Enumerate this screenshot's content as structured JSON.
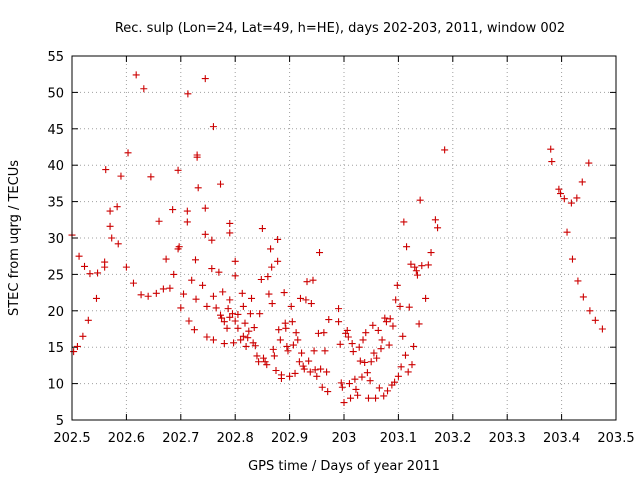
{
  "chart_data": {
    "type": "scatter",
    "title": "Rec. sulp (Lon=24, Lat=49, h=HE), days 202-203, 2011, window 002",
    "xlabel": "GPS time / Days of year 2011",
    "ylabel": "STEC from uqrg / TECUs",
    "xlim": [
      202.5,
      203.5
    ],
    "ylim": [
      5,
      55
    ],
    "x_ticks": [
      "202.5",
      "202.6",
      "202.7",
      "202.8",
      "202.9",
      "203",
      "203.1",
      "203.2",
      "203.3",
      "203.4",
      "203.5"
    ],
    "y_ticks": [
      "5",
      "10",
      "15",
      "20",
      "25",
      "30",
      "35",
      "40",
      "45",
      "50",
      "55"
    ],
    "grid": true,
    "legend": "none",
    "marker": "plus",
    "color": "#cc0000",
    "series": [
      {
        "name": "STEC",
        "points": [
          [
            202.5,
            30.4
          ],
          [
            202.503,
            14.4
          ],
          [
            202.51,
            15.1
          ],
          [
            202.513,
            27.5
          ],
          [
            202.52,
            16.5
          ],
          [
            202.523,
            26.1
          ],
          [
            202.53,
            18.7
          ],
          [
            202.533,
            25.1
          ],
          [
            202.545,
            21.7
          ],
          [
            202.547,
            25.2
          ],
          [
            202.56,
            26.0
          ],
          [
            202.56,
            26.7
          ],
          [
            202.562,
            39.4
          ],
          [
            202.57,
            33.7
          ],
          [
            202.57,
            31.6
          ],
          [
            202.573,
            30.0
          ],
          [
            202.583,
            34.3
          ],
          [
            202.585,
            29.2
          ],
          [
            202.59,
            38.5
          ],
          [
            202.6,
            26.0
          ],
          [
            202.603,
            41.7
          ],
          [
            202.613,
            23.8
          ],
          [
            202.618,
            52.4
          ],
          [
            202.627,
            22.2
          ],
          [
            202.632,
            50.5
          ],
          [
            202.64,
            22.0
          ],
          [
            202.645,
            38.4
          ],
          [
            202.655,
            22.4
          ],
          [
            202.66,
            32.3
          ],
          [
            202.668,
            23.0
          ],
          [
            202.673,
            27.1
          ],
          [
            202.68,
            23.1
          ],
          [
            202.685,
            33.9
          ],
          [
            202.687,
            25.0
          ],
          [
            202.695,
            28.5
          ],
          [
            202.695,
            39.3
          ],
          [
            202.697,
            28.8
          ],
          [
            202.7,
            20.4
          ],
          [
            202.705,
            22.3
          ],
          [
            202.712,
            33.7
          ],
          [
            202.712,
            32.2
          ],
          [
            202.713,
            49.8
          ],
          [
            202.715,
            18.6
          ],
          [
            202.72,
            24.2
          ],
          [
            202.725,
            17.4
          ],
          [
            202.727,
            27.0
          ],
          [
            202.728,
            21.6
          ],
          [
            202.73,
            41.4
          ],
          [
            202.73,
            41.1
          ],
          [
            202.732,
            36.9
          ],
          [
            202.74,
            23.5
          ],
          [
            202.745,
            51.9
          ],
          [
            202.745,
            34.1
          ],
          [
            202.745,
            30.5
          ],
          [
            202.748,
            20.6
          ],
          [
            202.748,
            16.4
          ],
          [
            202.757,
            29.7
          ],
          [
            202.757,
            25.8
          ],
          [
            202.76,
            45.3
          ],
          [
            202.76,
            22.0
          ],
          [
            202.76,
            16.0
          ],
          [
            202.765,
            20.4
          ],
          [
            202.77,
            25.3
          ],
          [
            202.773,
            37.4
          ],
          [
            202.773,
            19.4
          ],
          [
            202.775,
            19.0
          ],
          [
            202.777,
            22.6
          ],
          [
            202.78,
            15.5
          ],
          [
            202.78,
            18.5
          ],
          [
            202.785,
            17.6
          ],
          [
            202.787,
            20.3
          ],
          [
            202.79,
            32.0
          ],
          [
            202.79,
            30.7
          ],
          [
            202.79,
            21.5
          ],
          [
            202.79,
            19.1
          ],
          [
            202.795,
            19.6
          ],
          [
            202.797,
            15.6
          ],
          [
            202.8,
            26.8
          ],
          [
            202.8,
            24.8
          ],
          [
            202.8,
            18.6
          ],
          [
            202.805,
            19.5
          ],
          [
            202.805,
            17.6
          ],
          [
            202.81,
            16.0
          ],
          [
            202.813,
            22.4
          ],
          [
            202.815,
            20.6
          ],
          [
            202.815,
            16.5
          ],
          [
            202.818,
            18.3
          ],
          [
            202.82,
            15.1
          ],
          [
            202.823,
            16.3
          ],
          [
            202.825,
            17.2
          ],
          [
            202.828,
            19.6
          ],
          [
            202.83,
            21.7
          ],
          [
            202.833,
            15.6
          ],
          [
            202.835,
            17.7
          ],
          [
            202.837,
            15.2
          ],
          [
            202.84,
            13.8
          ],
          [
            202.843,
            13.0
          ],
          [
            202.845,
            19.6
          ],
          [
            202.848,
            24.3
          ],
          [
            202.85,
            31.3
          ],
          [
            202.852,
            13.5
          ],
          [
            202.855,
            13.0
          ],
          [
            202.858,
            12.6
          ],
          [
            202.86,
            24.7
          ],
          [
            202.862,
            22.3
          ],
          [
            202.865,
            28.5
          ],
          [
            202.867,
            26.0
          ],
          [
            202.868,
            21.0
          ],
          [
            202.87,
            14.7
          ],
          [
            202.872,
            13.8
          ],
          [
            202.875,
            11.8
          ],
          [
            202.878,
            26.8
          ],
          [
            202.878,
            29.8
          ],
          [
            202.88,
            17.4
          ],
          [
            202.883,
            16.0
          ],
          [
            202.885,
            11.2
          ],
          [
            202.885,
            10.7
          ],
          [
            202.89,
            22.5
          ],
          [
            202.892,
            18.3
          ],
          [
            202.893,
            17.6
          ],
          [
            202.895,
            15.1
          ],
          [
            202.897,
            14.5
          ],
          [
            202.9,
            11.0
          ],
          [
            202.903,
            20.6
          ],
          [
            202.905,
            18.5
          ],
          [
            202.907,
            15.3
          ],
          [
            202.91,
            11.4
          ],
          [
            202.912,
            17.0
          ],
          [
            202.915,
            16.0
          ],
          [
            202.918,
            13.0
          ],
          [
            202.92,
            21.7
          ],
          [
            202.922,
            14.2
          ],
          [
            202.925,
            12.4
          ],
          [
            202.927,
            12.0
          ],
          [
            202.93,
            21.5
          ],
          [
            202.932,
            24.0
          ],
          [
            202.935,
            13.1
          ],
          [
            202.938,
            11.6
          ],
          [
            202.94,
            21.0
          ],
          [
            202.943,
            24.2
          ],
          [
            202.945,
            14.5
          ],
          [
            202.947,
            11.9
          ],
          [
            202.95,
            11.0
          ],
          [
            202.953,
            16.9
          ],
          [
            202.955,
            28.0
          ],
          [
            202.957,
            12.0
          ],
          [
            202.96,
            9.5
          ],
          [
            202.963,
            17.0
          ],
          [
            202.965,
            14.5
          ],
          [
            202.968,
            11.6
          ],
          [
            202.97,
            8.9
          ],
          [
            202.972,
            18.8
          ],
          [
            202.99,
            20.3
          ],
          [
            202.99,
            18.5
          ],
          [
            202.993,
            15.4
          ],
          [
            202.995,
            10.1
          ],
          [
            202.997,
            9.5
          ],
          [
            203.0,
            7.4
          ],
          [
            203.003,
            16.9
          ],
          [
            203.006,
            17.3
          ],
          [
            203.008,
            16.4
          ],
          [
            203.01,
            10.0
          ],
          [
            203.012,
            8.0
          ],
          [
            203.015,
            15.5
          ],
          [
            203.017,
            14.4
          ],
          [
            203.02,
            10.6
          ],
          [
            203.022,
            9.2
          ],
          [
            203.025,
            8.4
          ],
          [
            203.028,
            15.0
          ],
          [
            203.03,
            13.1
          ],
          [
            203.033,
            10.9
          ],
          [
            203.035,
            16.0
          ],
          [
            203.038,
            12.9
          ],
          [
            203.04,
            17.0
          ],
          [
            203.043,
            11.5
          ],
          [
            203.045,
            8.0
          ],
          [
            203.048,
            10.4
          ],
          [
            203.05,
            13.0
          ],
          [
            203.053,
            18.0
          ],
          [
            203.055,
            14.2
          ],
          [
            203.058,
            8.0
          ],
          [
            203.06,
            13.5
          ],
          [
            203.063,
            17.3
          ],
          [
            203.065,
            9.4
          ],
          [
            203.068,
            14.8
          ],
          [
            203.07,
            16.0
          ],
          [
            203.073,
            8.3
          ],
          [
            203.075,
            19.0
          ],
          [
            203.078,
            18.5
          ],
          [
            203.08,
            9.0
          ],
          [
            203.083,
            15.3
          ],
          [
            203.085,
            18.9
          ],
          [
            203.088,
            9.8
          ],
          [
            203.09,
            17.9
          ],
          [
            203.093,
            10.2
          ],
          [
            203.095,
            21.5
          ],
          [
            203.098,
            23.5
          ],
          [
            203.1,
            11.0
          ],
          [
            203.103,
            20.6
          ],
          [
            203.105,
            12.3
          ],
          [
            203.108,
            16.5
          ],
          [
            203.11,
            32.2
          ],
          [
            203.113,
            13.9
          ],
          [
            203.115,
            28.8
          ],
          [
            203.118,
            11.6
          ],
          [
            203.12,
            20.5
          ],
          [
            203.123,
            26.4
          ],
          [
            203.125,
            12.6
          ],
          [
            203.128,
            15.1
          ],
          [
            203.13,
            26.0
          ],
          [
            203.133,
            25.5
          ],
          [
            203.135,
            24.9
          ],
          [
            203.138,
            18.2
          ],
          [
            203.14,
            35.2
          ],
          [
            203.143,
            26.2
          ],
          [
            203.15,
            21.7
          ],
          [
            203.155,
            26.3
          ],
          [
            203.16,
            28.0
          ],
          [
            203.168,
            32.5
          ],
          [
            203.172,
            31.4
          ],
          [
            203.185,
            42.1
          ],
          [
            203.38,
            42.2
          ],
          [
            203.382,
            40.5
          ],
          [
            203.395,
            36.7
          ],
          [
            203.398,
            36.1
          ],
          [
            203.405,
            35.4
          ],
          [
            203.41,
            30.8
          ],
          [
            203.418,
            34.8
          ],
          [
            203.42,
            27.1
          ],
          [
            203.428,
            35.5
          ],
          [
            203.43,
            24.1
          ],
          [
            203.438,
            37.7
          ],
          [
            203.44,
            21.9
          ],
          [
            203.45,
            40.3
          ],
          [
            203.452,
            20.0
          ],
          [
            203.462,
            18.7
          ],
          [
            203.475,
            17.5
          ]
        ]
      }
    ]
  }
}
